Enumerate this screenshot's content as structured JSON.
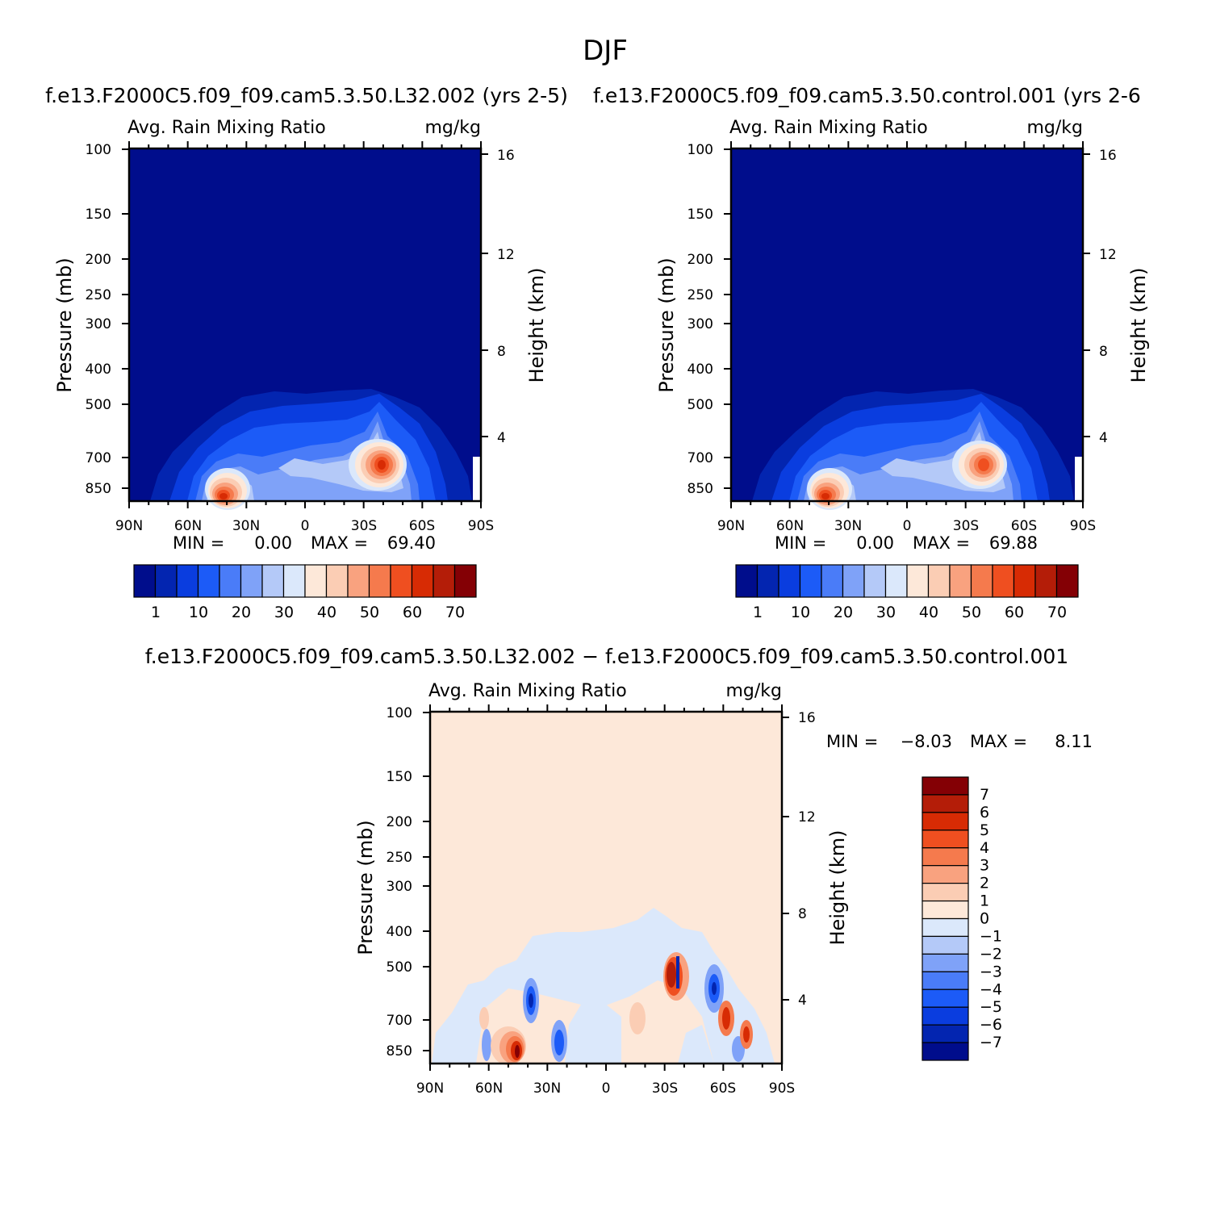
{
  "page_title": "DJF",
  "colors": {
    "seq": [
      "#000d8c",
      "#0325b0",
      "#0a3ddf",
      "#1c5bf7",
      "#4a7cf8",
      "#7fa2f8",
      "#b4c9f8",
      "#dbe8fb",
      "#fde8d9",
      "#fbcdb4",
      "#f9a27f",
      "#f57a4d",
      "#ef4f20",
      "#d72b04",
      "#b41d08",
      "#840005"
    ],
    "div": [
      "#840005",
      "#b41d08",
      "#d72b04",
      "#ef4f20",
      "#f57a4d",
      "#f9a27f",
      "#fbcdb4",
      "#fde8d9",
      "#dbe8fb",
      "#b4c9f8",
      "#7fa2f8",
      "#4a7cf8",
      "#1c5bf7",
      "#0a3ddf",
      "#0325b0",
      "#000d8c"
    ]
  },
  "chart_data": [
    {
      "type": "heatmap",
      "title": "f.e13.F2000C5.f09_f09.cam5.3.50.L32.002 (yrs 2-5)",
      "left_string": "Avg. Rain Mixing Ratio",
      "right_string": "mg/kg",
      "xlabel": "",
      "ylabel": "Pressure (mb)",
      "ylabel_right": "Height (km)",
      "x_ticks": [
        "90N",
        "60N",
        "30N",
        "0",
        "30S",
        "60S",
        "90S"
      ],
      "y_ticks": [
        "100",
        "150",
        "200",
        "250",
        "300",
        "400",
        "500",
        "700",
        "850"
      ],
      "y_right_ticks": [
        "16",
        "12",
        "8",
        "4"
      ],
      "stats": {
        "min_label": "MIN =",
        "min": "0.00",
        "max_label": "MAX =",
        "max": "69.40"
      },
      "colorbar_labels": [
        "1",
        "10",
        "20",
        "30",
        "40",
        "50",
        "60",
        "70"
      ],
      "peaks": [
        {
          "lat": "~40N",
          "pressure_mb": 850,
          "value": 69.4
        },
        {
          "lat": "~40S",
          "pressure_mb": 700,
          "value": 65
        }
      ]
    },
    {
      "type": "heatmap",
      "title": "f.e13.F2000C5.f09_f09.cam5.3.50.control.001 (yrs 2-6",
      "left_string": "Avg. Rain Mixing Ratio",
      "right_string": "mg/kg",
      "xlabel": "",
      "ylabel": "Pressure (mb)",
      "ylabel_right": "Height (km)",
      "x_ticks": [
        "90N",
        "60N",
        "30N",
        "0",
        "30S",
        "60S",
        "90S"
      ],
      "y_ticks": [
        "100",
        "150",
        "200",
        "250",
        "300",
        "400",
        "500",
        "700",
        "850"
      ],
      "y_right_ticks": [
        "16",
        "12",
        "8",
        "4"
      ],
      "stats": {
        "min_label": "MIN =",
        "min": "0.00",
        "max_label": "MAX =",
        "max": "69.88"
      },
      "colorbar_labels": [
        "1",
        "10",
        "20",
        "30",
        "40",
        "50",
        "60",
        "70"
      ],
      "peaks": [
        {
          "lat": "~40N",
          "pressure_mb": 850,
          "value": 69.88
        },
        {
          "lat": "~40S",
          "pressure_mb": 700,
          "value": 60
        }
      ]
    },
    {
      "type": "heatmap",
      "title": "f.e13.F2000C5.f09_f09.cam5.3.50.L32.002 − f.e13.F2000C5.f09_f09.cam5.3.50.control.001",
      "left_string": "Avg. Rain Mixing Ratio",
      "right_string": "mg/kg",
      "xlabel": "",
      "ylabel": "Pressure (mb)",
      "ylabel_right": "Height (km)",
      "x_ticks": [
        "90N",
        "60N",
        "30N",
        "0",
        "30S",
        "60S",
        "90S"
      ],
      "y_ticks": [
        "100",
        "150",
        "200",
        "250",
        "300",
        "400",
        "500",
        "700",
        "850"
      ],
      "y_right_ticks": [
        "16",
        "12",
        "8",
        "4"
      ],
      "stats": {
        "min_label": "MIN =",
        "min": "−8.03",
        "max_label": "MAX =",
        "max": "8.11"
      },
      "colorbar_labels": [
        "7",
        "6",
        "5",
        "4",
        "3",
        "2",
        "1",
        "0",
        "−1",
        "−2",
        "−3",
        "−4",
        "−5",
        "−6",
        "−7"
      ]
    }
  ]
}
